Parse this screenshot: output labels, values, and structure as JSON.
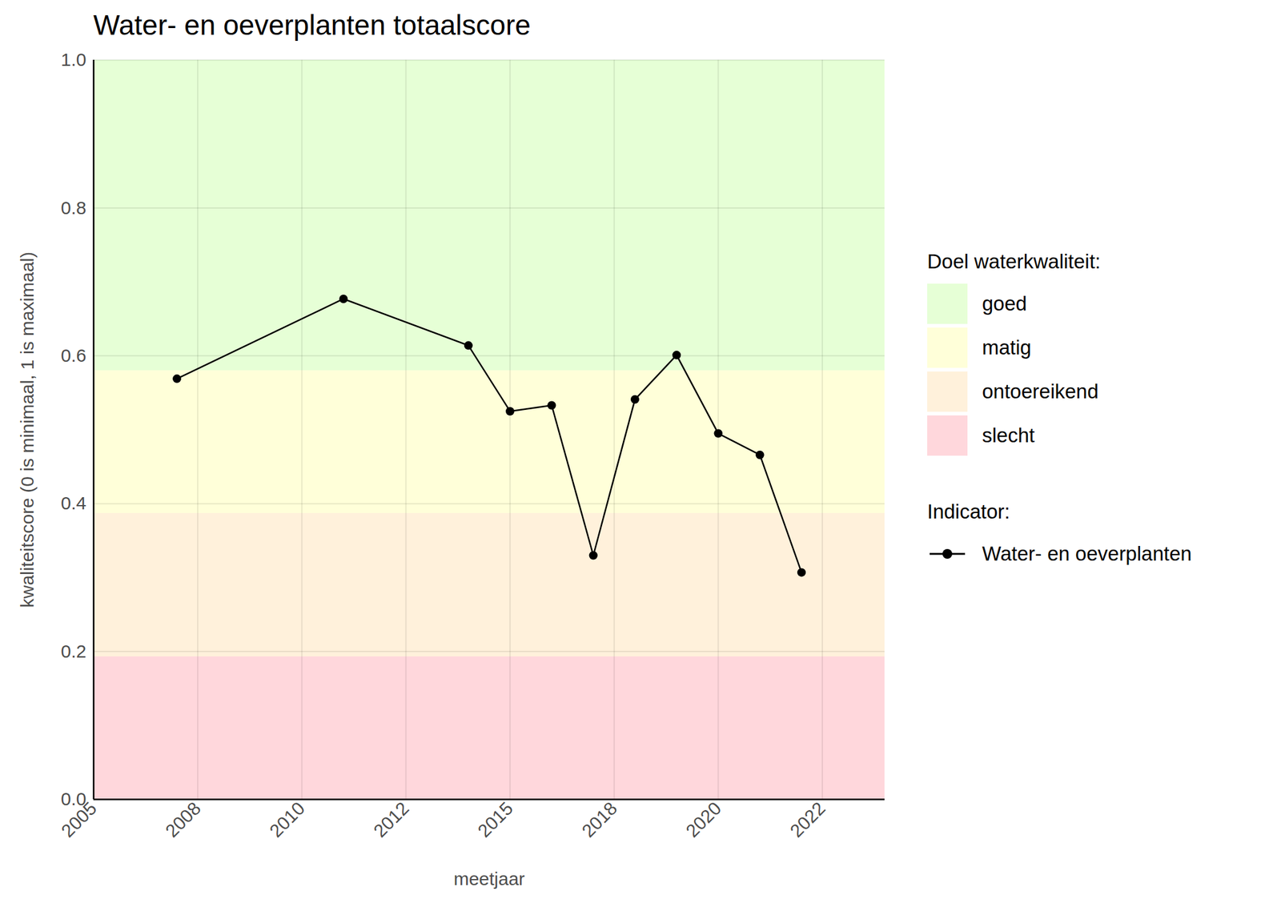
{
  "chart_data": {
    "type": "line",
    "title": "Water- en oeverplanten totaalscore",
    "x_label": "meetjaar",
    "y_label": "kwaliteitscore (0 is minimaal, 1 is maximaal)",
    "x": [
      2007,
      2011,
      2014,
      2015,
      2016,
      2017,
      2018,
      2019,
      2020,
      2021,
      2022
    ],
    "series": [
      {
        "name": "Water- en oeverplanten",
        "color": "#000000",
        "marker": "circle",
        "values": [
          0.569,
          0.677,
          0.614,
          0.525,
          0.533,
          0.33,
          0.541,
          0.601,
          0.495,
          0.466,
          0.307
        ]
      }
    ],
    "xlim": [
      2005,
      2024
    ],
    "xticks": [
      2005,
      {
        "value": 2007.5,
        "label": "2008"
      },
      2010,
      {
        "value": 2012.5,
        "label": "2012"
      },
      2015,
      {
        "value": 2017.5,
        "label": "2018"
      },
      2020,
      {
        "value": 2022.5,
        "label": "2022"
      }
    ],
    "ylim": [
      0,
      1
    ],
    "yticks": [
      {
        "value": 0,
        "label": "0.0"
      },
      0.2,
      0.4,
      0.6,
      0.8,
      {
        "value": 1,
        "label": "1.0"
      }
    ],
    "grid": true,
    "legend": "right",
    "band_title": "Doel waterkwaliteit:",
    "series_title": "Indicator:",
    "bands": [
      {
        "name": "goed",
        "color": "#e6ffd6",
        "from": 0.58,
        "to": 1
      },
      {
        "name": "matig",
        "color": "#ffffd9",
        "from": 0.387,
        "to": 0.58
      },
      {
        "name": "ontoereikend",
        "color": "#fff1db",
        "from": 0.193,
        "to": 0.387
      },
      {
        "name": "slecht",
        "color": "#ffd7dc",
        "from": 0,
        "to": 0.193
      }
    ]
  }
}
